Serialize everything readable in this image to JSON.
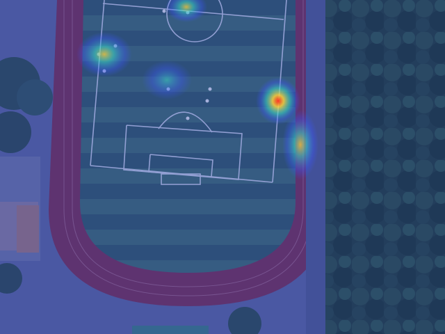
{
  "scene": {
    "kind": "aerial-heatmap-overlay",
    "overlay_colors": {
      "base_tint": "#2c3b9a",
      "low": "#3b56ff",
      "mid": "#3bd6c8",
      "high": "#ffd23a",
      "peak": "#ff2a1a"
    },
    "surface_colors": {
      "track": "#7a2f59",
      "grass_dark": "#2f5a6a",
      "grass_light": "#3d6e76",
      "lines": "#d9e1ff",
      "trees": "#1f3f3a",
      "concrete": "#5d6aa6"
    }
  }
}
